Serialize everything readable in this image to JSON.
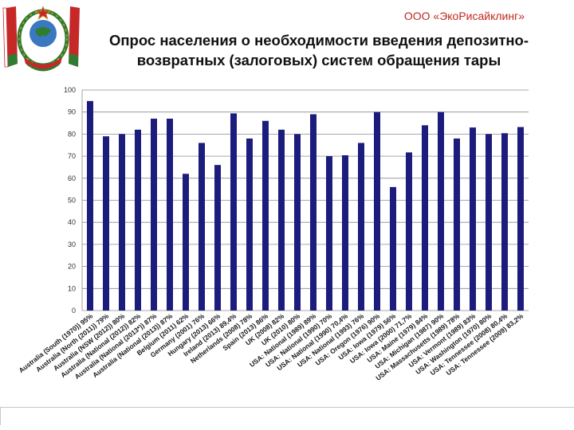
{
  "header": {
    "company": "ООО «ЭкоРисайклинг»",
    "title_line1": "Опрос населения о необходимости введения депозитно-",
    "title_line2": "возвратных (залоговых) систем обращения тары"
  },
  "colors": {
    "bar": "#1c1c7c",
    "accent": "#c0281e",
    "emblem_red": "#c62828",
    "emblem_green": "#2e7d32",
    "emblem_gold": "#d4a017"
  },
  "chart_data": {
    "type": "bar",
    "title": "",
    "xlabel": "",
    "ylabel": "",
    "ylim": [
      0,
      100
    ],
    "yticks": [
      0,
      10,
      20,
      30,
      40,
      50,
      60,
      70,
      80,
      90,
      100
    ],
    "grid": true,
    "categories": [
      "Australia (South (1970)) 95%",
      "Australia (North (2011)) 79%",
      "Australia (NSW (2012)) 80%",
      "Australia (National (2012)) 82%",
      "Australia (National (2013*)) 87%",
      "Australia (National (2013)) 87%",
      "Belgium (2011) 62%",
      "Germany (2001) 76%",
      "Hungary (2013) 66%",
      "Ireland (2013) 89,4%",
      "Netherlands (2008) 78%",
      "Spain (2013) 86%",
      "UK (2008) 82%",
      "UK (2010) 80%",
      "USA: National (1989) 89%",
      "USA: National (1990) 70%",
      "USA: National (1990) 70,4%",
      "USA: National (1993) 76%",
      "USA: Oregon (1976) 90%",
      "USA: Iowa (1979) 56%",
      "USA: Iowa (2000) 71,7%",
      "USA: Maine (1979) 84%",
      "USA: Michigan (1987) 90%",
      "USA: Massachusetts (1989) 78%",
      "USA: Vermont (1989) 83%",
      "USA: Washington (1970) 80%",
      "USA: Tennessee (2008) 80,4%",
      "USA: Tennessee (2009) 83,2%"
    ],
    "values": [
      95,
      79,
      80,
      82,
      87,
      87,
      62,
      76,
      66,
      89.4,
      78,
      86,
      82,
      80,
      89,
      70,
      70.4,
      76,
      90,
      56,
      71.7,
      84,
      90,
      78,
      83,
      80,
      80.4,
      83.2
    ]
  }
}
